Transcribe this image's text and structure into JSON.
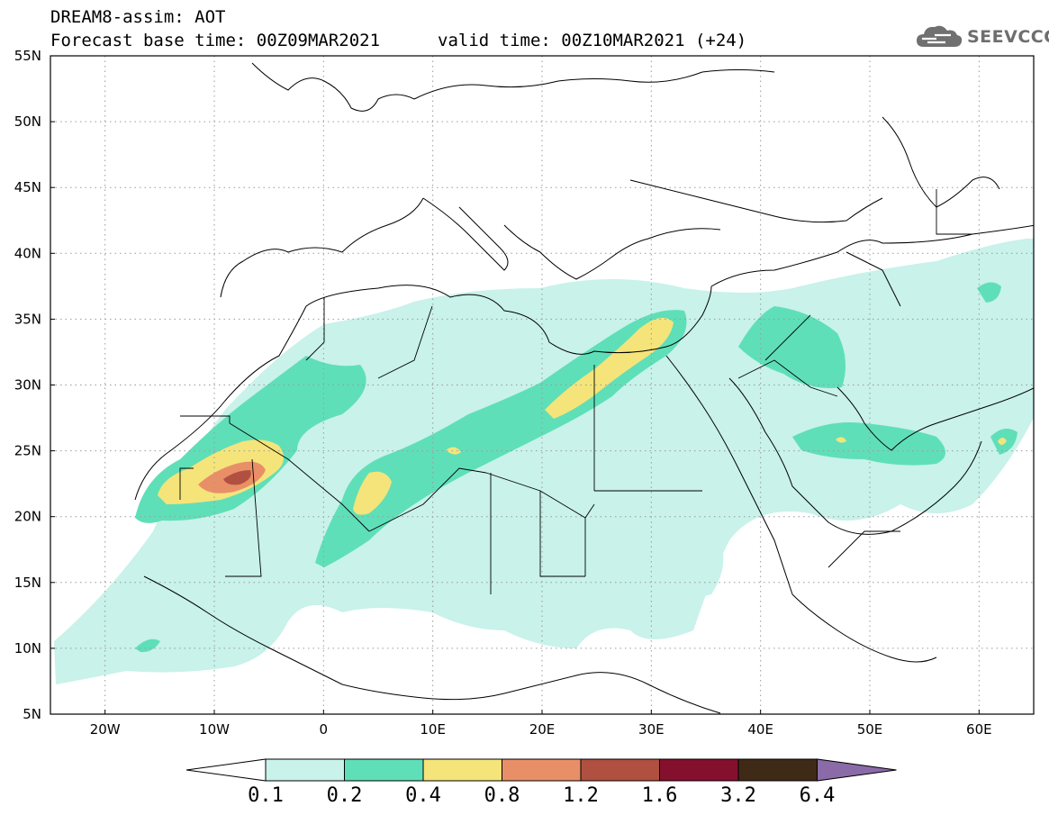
{
  "header": {
    "title_line1": "DREAM8-assim: AOT",
    "title_line2": "Forecast base time: 00Z09MAR2021",
    "valid_time": "valid time: 00Z10MAR2021 (+24)"
  },
  "logo": {
    "text": "SEEVCCC",
    "icon": "cloud-icon"
  },
  "map": {
    "lon_range": [
      -25,
      65
    ],
    "lat_range": [
      5,
      55
    ],
    "lon_ticks": [
      "20W",
      "10W",
      "0",
      "10E",
      "20E",
      "30E",
      "40E",
      "50E",
      "60E"
    ],
    "lat_ticks": [
      "55N",
      "50N",
      "45N",
      "40N",
      "35N",
      "30N",
      "25N",
      "20N",
      "15N",
      "10N",
      "5N"
    ],
    "grid": "dotted",
    "field": "AOT"
  },
  "colorbar": {
    "levels": [
      "0.1",
      "0.2",
      "0.4",
      "0.8",
      "1.2",
      "1.6",
      "3.2",
      "6.4"
    ],
    "colors": [
      "#c8f2ea",
      "#5fdfb8",
      "#f5e47a",
      "#e98f68",
      "#b05040",
      "#85102e",
      "#3f2a18",
      "#8a6ba8"
    ],
    "under_color": "#ffffff"
  }
}
